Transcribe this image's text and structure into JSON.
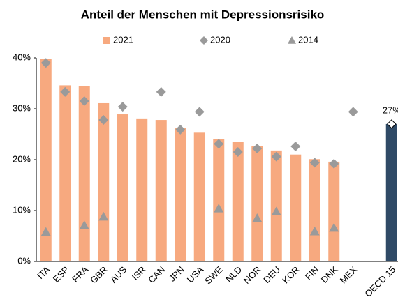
{
  "chart_data": {
    "type": "bar",
    "title": "Anteil der Menschen mit Depressionsrisiko",
    "categories": [
      "ITA",
      "ESP",
      "FRA",
      "GBR",
      "AUS",
      "ISR",
      "CAN",
      "JPN",
      "USA",
      "SWE",
      "NLD",
      "NOR",
      "DEU",
      "KOR",
      "FIN",
      "DNK",
      "MEX",
      null,
      "OECD 15"
    ],
    "series": [
      {
        "name": "2021",
        "marker": "bar",
        "color": "#f7a97f",
        "colors": [
          "#f7a97f",
          "#f7a97f",
          "#f7a97f",
          "#f7a97f",
          "#f7a97f",
          "#f7a97f",
          "#f7a97f",
          "#f7a97f",
          "#f7a97f",
          "#f7a97f",
          "#f7a97f",
          "#f7a97f",
          "#f7a97f",
          "#f7a97f",
          "#f7a97f",
          "#f7a97f",
          "#f7a97f",
          "#f7a97f",
          "#2f4a66"
        ],
        "values": [
          39.8,
          34.6,
          34.4,
          31.1,
          28.9,
          28.1,
          27.8,
          26.3,
          25.3,
          24.0,
          23.5,
          22.6,
          21.8,
          21.0,
          20.1,
          19.6,
          null,
          null,
          27
        ],
        "value_labels": [
          null,
          null,
          null,
          null,
          null,
          null,
          null,
          null,
          null,
          null,
          null,
          null,
          null,
          null,
          null,
          null,
          null,
          null,
          "27%"
        ]
      },
      {
        "name": "2020",
        "marker": "diamond",
        "color": "#9a9a9a",
        "values": [
          39.0,
          33.3,
          31.5,
          27.8,
          30.4,
          null,
          33.3,
          25.9,
          29.4,
          23.1,
          21.5,
          22.2,
          20.6,
          22.6,
          19.4,
          19.2,
          29.4,
          null,
          null
        ]
      },
      {
        "name": "2014",
        "marker": "triangle",
        "color": "#9a9a9a",
        "values": [
          5.8,
          null,
          7.1,
          8.8,
          null,
          null,
          null,
          null,
          null,
          10.4,
          null,
          8.5,
          9.8,
          null,
          5.9,
          6.6,
          null,
          null,
          null
        ]
      }
    ],
    "ylim": [
      0,
      40
    ],
    "yticks": [
      {
        "value": 0,
        "label": "0%"
      },
      {
        "value": 10,
        "label": "10%"
      },
      {
        "value": 20,
        "label": "20%"
      },
      {
        "value": 30,
        "label": "30%"
      },
      {
        "value": 40,
        "label": "40%"
      }
    ],
    "grid": false,
    "legend": "top"
  }
}
